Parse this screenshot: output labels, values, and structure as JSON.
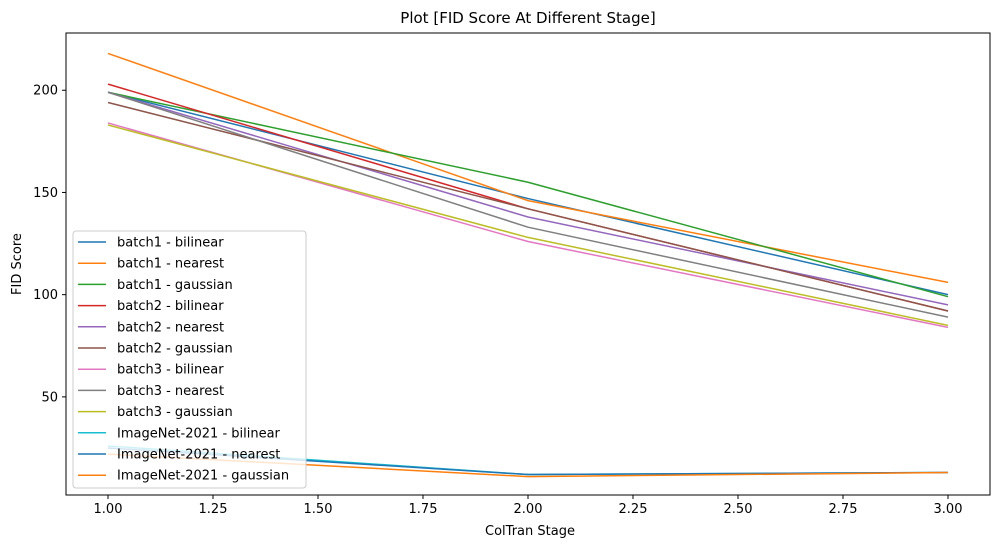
{
  "chart_data": {
    "type": "line",
    "title": "Plot [FID Score At Different Stage]",
    "xlabel": "ColTran Stage",
    "ylabel": "FID Score",
    "xlim": [
      0.9,
      3.1
    ],
    "ylim": [
      2,
      228
    ],
    "x_ticks": [
      "1.00",
      "1.25",
      "1.50",
      "1.75",
      "2.00",
      "2.25",
      "2.50",
      "2.75",
      "3.00"
    ],
    "x_tick_values": [
      1.0,
      1.25,
      1.5,
      1.75,
      2.0,
      2.25,
      2.5,
      2.75,
      3.0
    ],
    "y_ticks": [
      "50",
      "100",
      "150",
      "200"
    ],
    "y_tick_values": [
      50,
      100,
      150,
      200
    ],
    "x": [
      1,
      2,
      3
    ],
    "legend_position": "lower-left",
    "grid": false,
    "series": [
      {
        "name": "batch1 - bilinear",
        "color": "#1f77b4",
        "values": [
          199,
          147,
          100
        ]
      },
      {
        "name": "batch1 - nearest",
        "color": "#ff7f0e",
        "values": [
          218,
          146,
          106
        ]
      },
      {
        "name": "batch1 - gaussian",
        "color": "#2ca02c",
        "values": [
          199,
          155,
          99
        ]
      },
      {
        "name": "batch2 - bilinear",
        "color": "#d62728",
        "values": [
          203,
          142,
          92
        ]
      },
      {
        "name": "batch2 - nearest",
        "color": "#9467bd",
        "values": [
          199,
          138,
          95
        ]
      },
      {
        "name": "batch2 - gaussian",
        "color": "#8c564b",
        "values": [
          194,
          142,
          92
        ]
      },
      {
        "name": "batch3 - bilinear",
        "color": "#e377c2",
        "values": [
          184,
          126,
          84
        ]
      },
      {
        "name": "batch3 - nearest",
        "color": "#7f7f7f",
        "values": [
          199,
          133,
          89
        ]
      },
      {
        "name": "batch3 - gaussian",
        "color": "#bcbd22",
        "values": [
          183,
          128,
          85
        ]
      },
      {
        "name": "ImageNet-2021 - bilinear",
        "color": "#17becf",
        "values": [
          26,
          12,
          13
        ]
      },
      {
        "name": "ImageNet-2021 - nearest",
        "color": "#1f77b4",
        "values": [
          25,
          12,
          13
        ]
      },
      {
        "name": "ImageNet-2021 - gaussian",
        "color": "#ff7f0e",
        "values": [
          22,
          11,
          13
        ]
      }
    ]
  }
}
